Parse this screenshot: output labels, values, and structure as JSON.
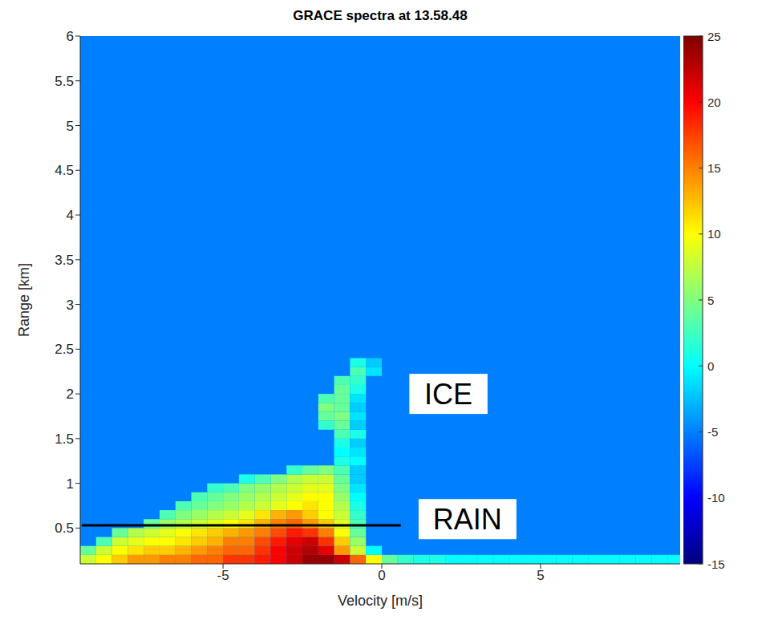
{
  "chart_data": {
    "type": "heatmap",
    "title": "GRACE spectra at 13.58.48",
    "x_label": "Velocity [m/s]",
    "y_label": "Range [km]",
    "xlim": [
      -9.5,
      9.4
    ],
    "xticks": [
      -5,
      0,
      5
    ],
    "ylim": [
      0.1,
      6
    ],
    "yticks": [
      0.5,
      1,
      1.5,
      2,
      2.5,
      3,
      3.5,
      4,
      4.5,
      5,
      5.5,
      6
    ],
    "cell_size": [
      0.5,
      0.1
    ],
    "background": -5,
    "rows": [
      {
        "y": 0.15,
        "x_start": -9.5,
        "values": [
          8,
          10,
          12,
          14,
          14,
          15,
          15,
          16,
          16,
          18,
          18,
          19,
          20,
          22,
          24,
          24,
          22,
          16,
          10,
          4,
          2,
          1,
          1,
          0,
          0,
          0,
          0,
          0,
          0,
          0,
          0,
          0,
          0,
          0,
          0,
          0,
          0,
          0
        ]
      },
      {
        "y": 0.25,
        "x_start": -9.5,
        "values": [
          4,
          8,
          10,
          11,
          12,
          12,
          13,
          14,
          15,
          16,
          16,
          18,
          20,
          22,
          23,
          21,
          14,
          8,
          0
        ]
      },
      {
        "y": 0.35,
        "x_start": -9,
        "values": [
          3,
          8,
          9,
          10,
          10,
          11,
          12,
          13,
          15,
          15,
          17,
          19,
          21,
          22,
          18,
          12,
          6
        ]
      },
      {
        "y": 0.45,
        "x_start": -8.5,
        "values": [
          4,
          7,
          8,
          9,
          10,
          11,
          12,
          13,
          14,
          15,
          17,
          19,
          18,
          15,
          10,
          4
        ]
      },
      {
        "y": 0.55,
        "x_start": -7.5,
        "values": [
          4,
          6,
          7,
          8,
          9,
          10,
          11,
          13,
          15,
          16,
          14,
          12,
          9,
          3
        ]
      },
      {
        "y": 0.65,
        "x_start": -7,
        "values": [
          3,
          5,
          6,
          7,
          8,
          9,
          11,
          13,
          14,
          12,
          10,
          8,
          2
        ]
      },
      {
        "y": 0.75,
        "x_start": -6.5,
        "values": [
          3,
          4,
          5,
          6,
          7,
          8,
          9,
          10,
          11,
          10,
          7,
          1
        ]
      },
      {
        "y": 0.85,
        "x_start": -6,
        "values": [
          3,
          4,
          5,
          6,
          7,
          8,
          9,
          10,
          10,
          6,
          0
        ]
      },
      {
        "y": 0.95,
        "x_start": -5.5,
        "values": [
          2,
          3,
          5,
          6,
          7,
          8,
          9,
          9,
          5,
          -1
        ]
      },
      {
        "y": 1.05,
        "x_start": -4.5,
        "values": [
          1,
          3,
          5,
          7,
          8,
          8,
          4,
          -2
        ]
      },
      {
        "y": 1.15,
        "x_start": -3,
        "values": [
          2,
          4,
          5,
          3,
          -2
        ]
      },
      {
        "y": 1.25,
        "x_start": -1.5,
        "values": [
          1,
          0
        ]
      },
      {
        "y": 1.35,
        "x_start": -1.5,
        "values": [
          0,
          -1
        ]
      },
      {
        "y": 1.45,
        "x_start": -1.5,
        "values": [
          1,
          -2
        ]
      },
      {
        "y": 1.55,
        "x_start": -1.5,
        "values": [
          3,
          1
        ]
      },
      {
        "y": 1.65,
        "x_start": -2,
        "values": [
          2,
          4,
          -2
        ]
      },
      {
        "y": 1.75,
        "x_start": -2,
        "values": [
          4,
          5,
          -1
        ]
      },
      {
        "y": 1.85,
        "x_start": -2,
        "values": [
          5,
          4,
          -2
        ]
      },
      {
        "y": 1.95,
        "x_start": -2,
        "values": [
          3,
          4,
          -1
        ]
      },
      {
        "y": 2.05,
        "x_start": -1.5,
        "values": [
          4,
          1
        ]
      },
      {
        "y": 2.15,
        "x_start": -1.5,
        "values": [
          3,
          2
        ]
      },
      {
        "y": 2.25,
        "x_start": -1,
        "values": [
          3,
          -1
        ]
      },
      {
        "y": 2.35,
        "x_start": -1,
        "values": [
          1,
          -2
        ]
      }
    ],
    "colorbar": {
      "range": [
        -15,
        25
      ],
      "ticks": [
        -15,
        -10,
        -5,
        0,
        5,
        10,
        15,
        20,
        25
      ]
    },
    "annotations": [
      {
        "text": "ICE",
        "x": 2.1,
        "y": 2
      },
      {
        "text": "RAIN",
        "x": 2.7,
        "y": 0.6,
        "line": {
          "y": 0.53,
          "x": [
            -9.45,
            0.6
          ]
        }
      }
    ]
  }
}
